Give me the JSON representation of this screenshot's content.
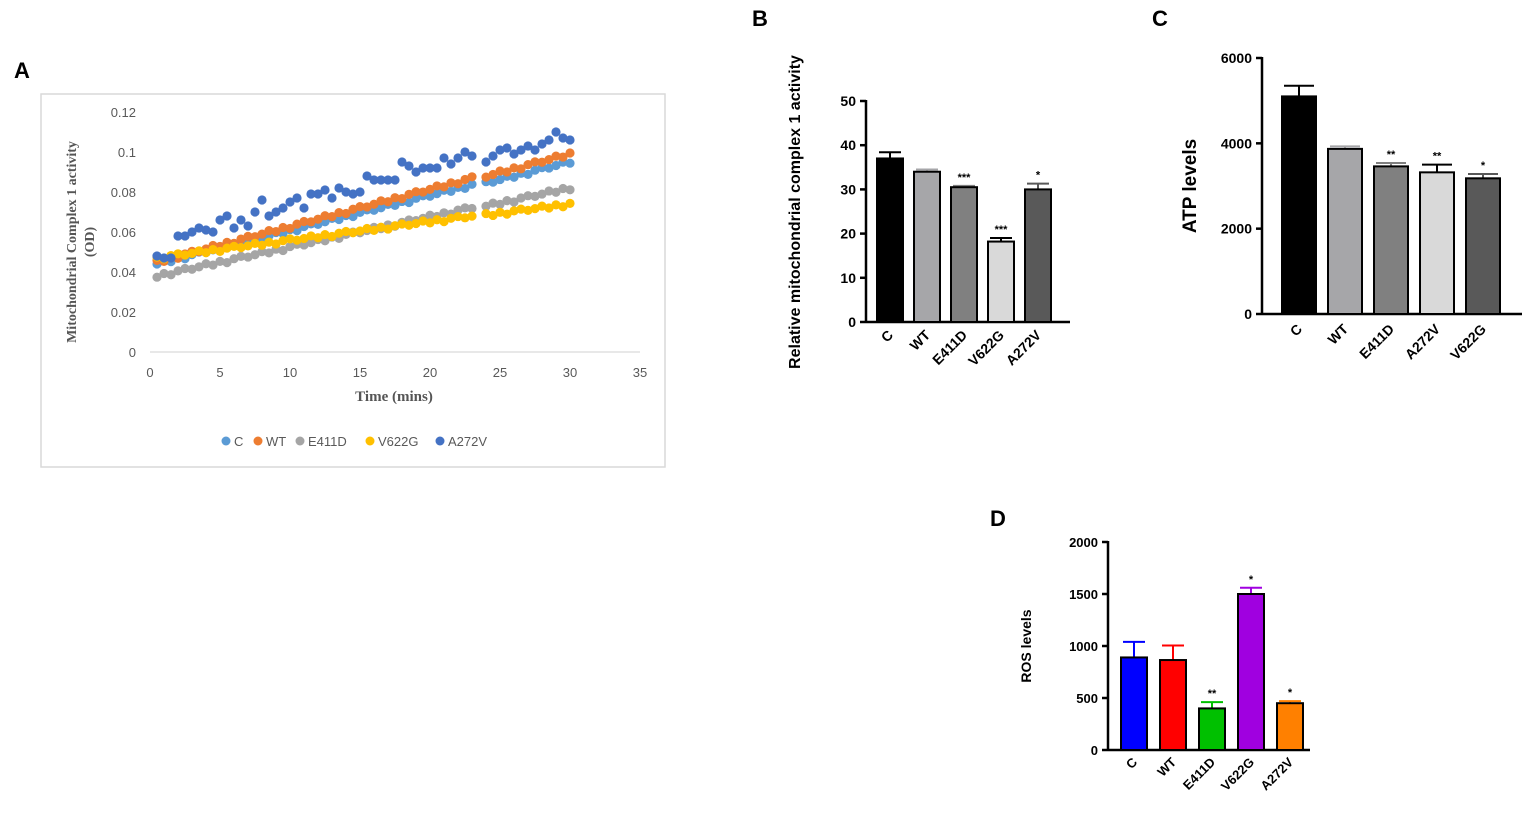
{
  "figure": {
    "panel_labels": [
      "A",
      "B",
      "C",
      "D"
    ]
  },
  "chart_data": [
    {
      "panel": "A",
      "type": "scatter",
      "title": "",
      "xlabel": "Time (mins)",
      "ylabel": "Mitochondrial  Complex 1 activity (OD)",
      "ylabel_lines": [
        "Mitochondrial  Complex 1 activity",
        "(OD)"
      ],
      "xlim": [
        0,
        35
      ],
      "ylim": [
        0,
        0.12
      ],
      "xticks": [
        "0",
        "5",
        "10",
        "15",
        "20",
        "25",
        "30",
        "35"
      ],
      "yticks": [
        "0",
        "0.02",
        "0.04",
        "0.06",
        "0.08",
        "0.1",
        "0.12"
      ],
      "legend_position": "bottom",
      "x": [
        0.5,
        1,
        1.5,
        2,
        2.5,
        3,
        3.5,
        4,
        4.5,
        5,
        5.5,
        6,
        6.5,
        7,
        7.5,
        8,
        8.5,
        9,
        9.5,
        10,
        10.5,
        11,
        11.5,
        12,
        12.5,
        13,
        13.5,
        14,
        14.5,
        15,
        15.5,
        16,
        16.5,
        17,
        17.5,
        18,
        18.5,
        19,
        19.5,
        20,
        20.5,
        21,
        21.5,
        22,
        22.5,
        23,
        24,
        24.5,
        25,
        25.5,
        26,
        26.5,
        27,
        27.5,
        28,
        28.5,
        29,
        29.5,
        30
      ],
      "series": [
        {
          "name": "C",
          "color": "#5b9bd5",
          "start": 0.044,
          "end": 0.095
        },
        {
          "name": "WT",
          "color": "#ed7d31",
          "start": 0.045,
          "end": 0.099
        },
        {
          "name": "E411D",
          "color": "#a5a5a5",
          "start": 0.038,
          "end": 0.082
        },
        {
          "name": "V622G",
          "color": "#ffc000",
          "start": 0.047,
          "end": 0.074
        },
        {
          "name": "A272V",
          "color": "#4472c4",
          "values": [
            0.048,
            0.047,
            0.047,
            0.058,
            0.058,
            0.06,
            0.062,
            0.061,
            0.06,
            0.066,
            0.068,
            0.062,
            0.066,
            0.063,
            0.07,
            0.076,
            0.068,
            0.07,
            0.072,
            0.075,
            0.077,
            0.072,
            0.079,
            0.079,
            0.081,
            0.077,
            0.082,
            0.08,
            0.079,
            0.08,
            0.088,
            0.086,
            0.086,
            0.086,
            0.086,
            0.095,
            0.093,
            0.09,
            0.092,
            0.092,
            0.092,
            0.097,
            0.094,
            0.097,
            0.1,
            0.098,
            0.095,
            0.098,
            0.101,
            0.102,
            0.099,
            0.101,
            0.103,
            0.101,
            0.104,
            0.106,
            0.11,
            0.107,
            0.106
          ]
        }
      ]
    },
    {
      "panel": "B",
      "type": "bar",
      "ylabel": "Relative mitochondrial complex 1 activity",
      "categories": [
        "C",
        "WT",
        "E411D",
        "V622G",
        "A272V"
      ],
      "values": [
        37,
        34,
        30.5,
        18.2,
        30
      ],
      "errors": [
        1.4,
        0.5,
        0.3,
        0.8,
        1.3
      ],
      "colors": [
        "#000000",
        "#a6a6a9",
        "#808080",
        "#d9d9d9",
        "#595959"
      ],
      "significance": [
        "",
        "",
        "***",
        "***",
        "*"
      ],
      "ylim": [
        0,
        50
      ],
      "yticks": [
        "0",
        "10",
        "20",
        "30",
        "40",
        "50"
      ]
    },
    {
      "panel": "C",
      "type": "bar",
      "ylabel": "ATP levels",
      "categories": [
        "C",
        "WT",
        "E411D",
        "A272V",
        "V622G"
      ],
      "values": [
        5100,
        3870,
        3460,
        3320,
        3180
      ],
      "errors": [
        250,
        60,
        80,
        180,
        100
      ],
      "colors": [
        "#000000",
        "#a6a6a9",
        "#808080",
        "#d9d9d9",
        "#595959"
      ],
      "significance": [
        "",
        "",
        "**",
        "**",
        "*"
      ],
      "ylim": [
        0,
        6000
      ],
      "yticks": [
        "0",
        "2000",
        "4000",
        "6000"
      ]
    },
    {
      "panel": "D",
      "type": "bar",
      "ylabel": "ROS levels",
      "categories": [
        "C",
        "WT",
        "E411D",
        "V622G",
        "A272V"
      ],
      "values": [
        890,
        865,
        400,
        1500,
        450
      ],
      "errors": [
        150,
        140,
        60,
        60,
        20
      ],
      "colors": [
        "#0000ff",
        "#ff0000",
        "#00c000",
        "#a000e0",
        "#ff8000"
      ],
      "significance": [
        "",
        "",
        "**",
        "*",
        "*"
      ],
      "ylim": [
        0,
        2000
      ],
      "yticks": [
        "0",
        "500",
        "1000",
        "1500",
        "2000"
      ]
    }
  ]
}
